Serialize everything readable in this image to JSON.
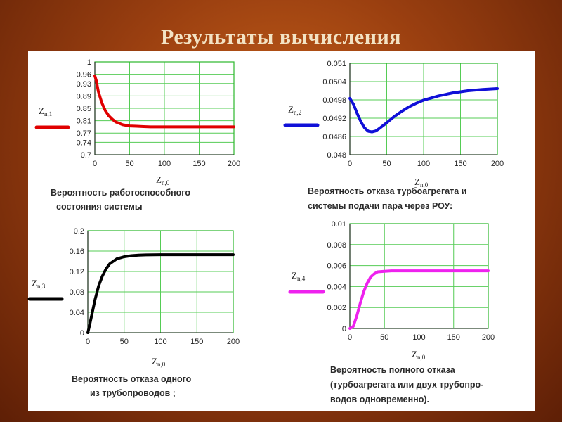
{
  "slide": {
    "title": "Результаты вычисления"
  },
  "chart_data": [
    {
      "type": "line",
      "x_var": "Z",
      "x_sub": "n,0",
      "y_var": "Z",
      "y_sub": "n,1",
      "caption": [
        "Вероятность работоспособного",
        "состояния системы"
      ],
      "color": "#e00000",
      "xlim": [
        0,
        200
      ],
      "ylim": [
        0.7,
        1.0
      ],
      "xticks": [
        0,
        50,
        100,
        150,
        200
      ],
      "yticks": [
        0.7,
        0.74,
        0.77,
        0.81,
        0.85,
        0.89,
        0.93,
        0.96,
        1
      ],
      "ytick_labels": [
        "0.7",
        "0.74",
        "0.77",
        "0.81",
        "0.85",
        "0.89",
        "0.93",
        "0.96",
        "1"
      ],
      "x": [
        0,
        2,
        5,
        10,
        15,
        20,
        25,
        30,
        40,
        50,
        60,
        70,
        80,
        100,
        150,
        200
      ],
      "y": [
        0.955,
        0.94,
        0.905,
        0.868,
        0.843,
        0.826,
        0.815,
        0.806,
        0.797,
        0.793,
        0.792,
        0.791,
        0.79,
        0.79,
        0.79,
        0.79
      ]
    },
    {
      "type": "line",
      "x_var": "Z",
      "x_sub": "n,0",
      "y_var": "Z",
      "y_sub": "n,2",
      "caption": [
        "Вероятность отказа турбоагрегата и",
        "системы подачи пара через РОУ:"
      ],
      "color": "#1010d8",
      "xlim": [
        0,
        200
      ],
      "ylim": [
        0.048,
        0.051
      ],
      "xticks": [
        0,
        50,
        100,
        150,
        200
      ],
      "yticks": [
        0.048,
        0.0486,
        0.0492,
        0.0498,
        0.0504,
        0.051
      ],
      "ytick_labels": [
        "0.048",
        "0.0486",
        "0.0492",
        "0.0498",
        "0.0504",
        "0.051"
      ],
      "x": [
        0,
        5,
        10,
        15,
        20,
        25,
        30,
        35,
        40,
        50,
        60,
        70,
        80,
        90,
        100,
        120,
        140,
        160,
        180,
        200
      ],
      "y": [
        0.04985,
        0.04965,
        0.04935,
        0.04908,
        0.04888,
        0.04877,
        0.04875,
        0.04878,
        0.04886,
        0.04905,
        0.04925,
        0.04942,
        0.04957,
        0.04969,
        0.04979,
        0.04993,
        0.05003,
        0.0501,
        0.05014,
        0.05017
      ]
    },
    {
      "type": "line",
      "x_var": "Z",
      "x_sub": "n,0",
      "y_var": "Z",
      "y_sub": "n,3",
      "caption": [
        "Вероятность отказа одного",
        "из трубопроводов ;"
      ],
      "color": "#000000",
      "xlim": [
        0,
        200
      ],
      "ylim": [
        0,
        0.2
      ],
      "xticks": [
        0,
        50,
        100,
        150,
        200
      ],
      "yticks": [
        0,
        0.04,
        0.08,
        0.12,
        0.16,
        0.2
      ],
      "ytick_labels": [
        "0",
        "0.04",
        "0.08",
        "0.12",
        "0.16",
        "0.2"
      ],
      "x": [
        0,
        2,
        5,
        10,
        15,
        20,
        25,
        30,
        40,
        50,
        60,
        70,
        80,
        100,
        150,
        200
      ],
      "y": [
        0.0,
        0.012,
        0.032,
        0.065,
        0.092,
        0.111,
        0.125,
        0.135,
        0.145,
        0.149,
        0.151,
        0.152,
        0.1525,
        0.153,
        0.153,
        0.153
      ]
    },
    {
      "type": "line",
      "x_var": "Z",
      "x_sub": "n,0",
      "y_var": "Z",
      "y_sub": "n,4",
      "caption": [
        "Вероятность  полного отказа",
        "(турбоагрегата или двух трубопро-",
        "водов одновременно)."
      ],
      "color": "#ee22ee",
      "xlim": [
        0,
        200
      ],
      "ylim": [
        0,
        0.01
      ],
      "xticks": [
        0,
        50,
        100,
        150,
        200
      ],
      "yticks": [
        0,
        0.002,
        0.004,
        0.006,
        0.008,
        0.01
      ],
      "ytick_labels": [
        "0",
        "0.002",
        "0.004",
        "0.006",
        "0.008",
        "0.01"
      ],
      "x": [
        0,
        5,
        10,
        15,
        20,
        25,
        30,
        35,
        40,
        50,
        60,
        80,
        100,
        150,
        200
      ],
      "y": [
        0.0,
        0.0002,
        0.0012,
        0.0024,
        0.0035,
        0.0043,
        0.0049,
        0.0052,
        0.0054,
        0.00545,
        0.0055,
        0.0055,
        0.0055,
        0.0055,
        0.0055
      ]
    }
  ]
}
